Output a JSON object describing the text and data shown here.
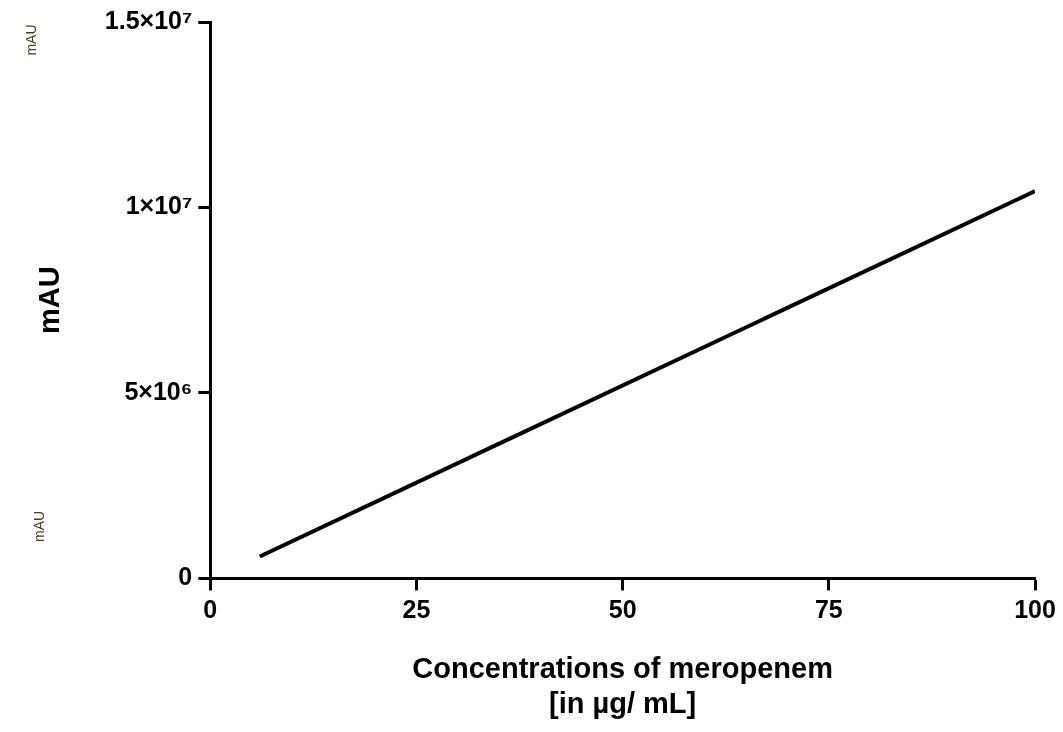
{
  "chart_data": {
    "type": "line",
    "xlabel": "Concentrations of meropenem\n[in µg/ mL]",
    "ylabel": "mAU",
    "annotations": [
      "mAU",
      "mAU"
    ],
    "series": [
      {
        "color": "#000000",
        "x": [
          6,
          100
        ],
        "values": [
          590000,
          10440000
        ]
      }
    ],
    "xlim": [
      0,
      100
    ],
    "xticks": [
      0,
      25,
      50,
      75,
      100
    ],
    "ylim": [
      0,
      15000000
    ],
    "yticks": [
      {
        "value": 0,
        "label": "0"
      },
      {
        "value": 5000000,
        "label": "5×10⁶"
      },
      {
        "value": 10000000,
        "label": "1×10⁷"
      },
      {
        "value": 15000000,
        "label": "1.5×10⁷"
      }
    ],
    "marker": "none",
    "line_style": "solid"
  }
}
